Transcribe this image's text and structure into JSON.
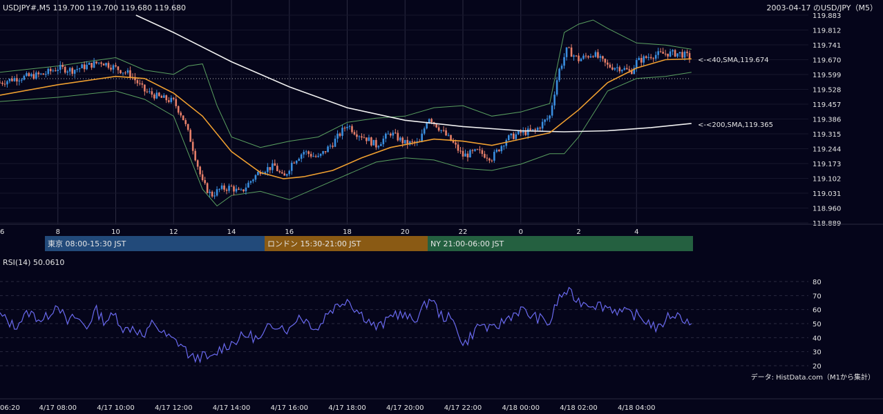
{
  "header": {
    "symbol_info": "USDJPY#,M5 119.700 119.700 119.680 119.680",
    "title": "2003-04-17 のUSD/JPY（M5）"
  },
  "main_axis": {
    "ticks": [
      "119.883",
      "119.812",
      "119.741",
      "119.670",
      "119.599",
      "119.528",
      "119.457",
      "119.386",
      "119.315",
      "119.244",
      "119.173",
      "119.102",
      "119.031",
      "118.960",
      "118.889"
    ],
    "x_ticks": [
      "6",
      "8",
      "10",
      "12",
      "14",
      "16",
      "18",
      "20",
      "22",
      "0",
      "2",
      "4"
    ]
  },
  "sessions": [
    {
      "label": "東京 08:00-15:30 JST",
      "color": "#224a7a"
    },
    {
      "label": "ロンドン 15:30-21:00 JST",
      "color": "#8a5a14"
    },
    {
      "label": "NY 21:00-06:00 JST",
      "color": "#246040"
    }
  ],
  "annotations": {
    "sma40": "<-<40,SMA,119.674",
    "sma200": "<-<200,SMA,119.365"
  },
  "colors": {
    "background": "#05051a",
    "bull": "#3a8fe0",
    "bear": "#e8806a",
    "sma40": "#f0a030",
    "sma200": "#f2f2f2",
    "bands": "#5aa060",
    "rsi": "#6a6af0"
  },
  "rsi": {
    "title": "RSI(14) 50.0610",
    "ticks": [
      "80",
      "70",
      "60",
      "50",
      "40",
      "30",
      "20"
    ]
  },
  "footer": {
    "source": "データ: HistData.com（M1から集計）",
    "time_ticks": [
      "06:20",
      "4/17 08:00",
      "4/17 10:00",
      "4/17 12:00",
      "4/17 14:00",
      "4/17 16:00",
      "4/17 18:00",
      "4/17 20:00",
      "4/17 22:00",
      "4/18 00:00",
      "4/18 02:00",
      "4/18 04:00"
    ]
  },
  "chart_data": [
    {
      "type": "candlestick",
      "title": "2003-04-17 のUSD/JPY（M5）",
      "ylim": [
        118.889,
        119.883
      ],
      "x_hours": [
        "6",
        "8",
        "10",
        "12",
        "14",
        "16",
        "18",
        "20",
        "22",
        "0",
        "2",
        "4"
      ],
      "close_path": [
        [
          6.0,
          119.56
        ],
        [
          6.5,
          119.58
        ],
        [
          7.0,
          119.59
        ],
        [
          7.5,
          119.6
        ],
        [
          8.0,
          119.63
        ],
        [
          8.5,
          119.62
        ],
        [
          9.0,
          119.64
        ],
        [
          9.5,
          119.66
        ],
        [
          10.0,
          119.63
        ],
        [
          10.5,
          119.6
        ],
        [
          11.0,
          119.52
        ],
        [
          11.5,
          119.49
        ],
        [
          12.0,
          119.47
        ],
        [
          12.3,
          119.4
        ],
        [
          12.6,
          119.28
        ],
        [
          13.0,
          119.08
        ],
        [
          13.3,
          119.02
        ],
        [
          13.6,
          119.05
        ],
        [
          14.0,
          119.06
        ],
        [
          14.3,
          119.03
        ],
        [
          14.6,
          119.08
        ],
        [
          15.0,
          119.14
        ],
        [
          15.5,
          119.16
        ],
        [
          15.8,
          119.1
        ],
        [
          16.1,
          119.18
        ],
        [
          16.5,
          119.23
        ],
        [
          17.0,
          119.2
        ],
        [
          17.5,
          119.27
        ],
        [
          18.0,
          119.36
        ],
        [
          18.3,
          119.32
        ],
        [
          18.6,
          119.3
        ],
        [
          19.0,
          119.26
        ],
        [
          19.5,
          119.32
        ],
        [
          20.0,
          119.27
        ],
        [
          20.5,
          119.27
        ],
        [
          20.8,
          119.4
        ],
        [
          21.2,
          119.34
        ],
        [
          21.6,
          119.28
        ],
        [
          22.0,
          119.21
        ],
        [
          22.5,
          119.23
        ],
        [
          23.0,
          119.2
        ],
        [
          23.5,
          119.29
        ],
        [
          24.0,
          119.32
        ],
        [
          24.5,
          119.33
        ],
        [
          25.0,
          119.4
        ],
        [
          25.3,
          119.61
        ],
        [
          25.6,
          119.72
        ],
        [
          26.0,
          119.67
        ],
        [
          26.5,
          119.7
        ],
        [
          27.0,
          119.64
        ],
        [
          27.5,
          119.63
        ],
        [
          27.8,
          119.61
        ],
        [
          28.0,
          119.66
        ],
        [
          28.5,
          119.69
        ],
        [
          29.0,
          119.7
        ],
        [
          29.5,
          119.7
        ],
        [
          29.9,
          119.68
        ]
      ],
      "sma40": [
        [
          6.0,
          119.5
        ],
        [
          8.0,
          119.55
        ],
        [
          10.0,
          119.59
        ],
        [
          11.0,
          119.58
        ],
        [
          12.0,
          119.51
        ],
        [
          13.0,
          119.4
        ],
        [
          14.0,
          119.23
        ],
        [
          15.0,
          119.13
        ],
        [
          15.8,
          119.1
        ],
        [
          16.5,
          119.11
        ],
        [
          17.5,
          119.14
        ],
        [
          18.5,
          119.2
        ],
        [
          19.5,
          119.25
        ],
        [
          21.0,
          119.29
        ],
        [
          22.0,
          119.28
        ],
        [
          23.0,
          119.26
        ],
        [
          24.0,
          119.29
        ],
        [
          25.0,
          119.32
        ],
        [
          26.0,
          119.43
        ],
        [
          27.0,
          119.56
        ],
        [
          28.0,
          119.63
        ],
        [
          29.0,
          119.67
        ],
        [
          29.9,
          119.674
        ]
      ],
      "sma200": [
        [
          10.7,
          119.883
        ],
        [
          12.0,
          119.8
        ],
        [
          14.0,
          119.66
        ],
        [
          16.0,
          119.54
        ],
        [
          18.0,
          119.44
        ],
        [
          20.0,
          119.38
        ],
        [
          22.0,
          119.35
        ],
        [
          24.0,
          119.33
        ],
        [
          25.5,
          119.325
        ],
        [
          27.0,
          119.33
        ],
        [
          28.5,
          119.345
        ],
        [
          29.9,
          119.365
        ]
      ],
      "bb_upper": [
        [
          6.0,
          119.61
        ],
        [
          8.0,
          119.64
        ],
        [
          9.0,
          119.66
        ],
        [
          10.0,
          119.68
        ],
        [
          11.0,
          119.62
        ],
        [
          12.0,
          119.6
        ],
        [
          12.5,
          119.64
        ],
        [
          13.0,
          119.65
        ],
        [
          13.5,
          119.45
        ],
        [
          14.0,
          119.3
        ],
        [
          15.0,
          119.25
        ],
        [
          16.0,
          119.28
        ],
        [
          17.0,
          119.3
        ],
        [
          18.0,
          119.37
        ],
        [
          19.0,
          119.39
        ],
        [
          20.0,
          119.4
        ],
        [
          21.0,
          119.44
        ],
        [
          22.0,
          119.45
        ],
        [
          23.0,
          119.4
        ],
        [
          24.0,
          119.42
        ],
        [
          25.0,
          119.46
        ],
        [
          25.5,
          119.8
        ],
        [
          26.0,
          119.84
        ],
        [
          26.5,
          119.86
        ],
        [
          27.0,
          119.82
        ],
        [
          28.0,
          119.75
        ],
        [
          29.0,
          119.74
        ],
        [
          29.9,
          119.72
        ]
      ],
      "bb_lower": [
        [
          6.0,
          119.47
        ],
        [
          8.0,
          119.49
        ],
        [
          10.0,
          119.52
        ],
        [
          11.0,
          119.48
        ],
        [
          12.0,
          119.4
        ],
        [
          13.0,
          119.05
        ],
        [
          13.5,
          118.97
        ],
        [
          14.0,
          119.02
        ],
        [
          15.0,
          119.04
        ],
        [
          16.0,
          119.0
        ],
        [
          17.0,
          119.06
        ],
        [
          18.0,
          119.12
        ],
        [
          19.0,
          119.18
        ],
        [
          20.0,
          119.2
        ],
        [
          21.0,
          119.19
        ],
        [
          22.0,
          119.15
        ],
        [
          23.0,
          119.14
        ],
        [
          24.0,
          119.17
        ],
        [
          25.0,
          119.22
        ],
        [
          25.5,
          119.22
        ],
        [
          26.0,
          119.3
        ],
        [
          27.0,
          119.52
        ],
        [
          28.0,
          119.58
        ],
        [
          29.0,
          119.59
        ],
        [
          29.9,
          119.61
        ]
      ]
    },
    {
      "type": "line",
      "title": "RSI(14) 50.0610",
      "ylim": [
        20,
        80
      ],
      "points": [
        [
          6.0,
          56
        ],
        [
          6.5,
          48
        ],
        [
          7.0,
          58
        ],
        [
          7.5,
          52
        ],
        [
          8.0,
          65
        ],
        [
          8.3,
          50
        ],
        [
          8.6,
          55
        ],
        [
          9.0,
          47
        ],
        [
          9.3,
          60
        ],
        [
          9.6,
          52
        ],
        [
          10.0,
          56
        ],
        [
          10.3,
          45
        ],
        [
          10.6,
          48
        ],
        [
          11.0,
          40
        ],
        [
          11.3,
          52
        ],
        [
          11.6,
          43
        ],
        [
          12.0,
          38
        ],
        [
          12.3,
          35
        ],
        [
          12.6,
          25
        ],
        [
          13.0,
          27
        ],
        [
          13.3,
          24
        ],
        [
          13.6,
          32
        ],
        [
          14.0,
          36
        ],
        [
          14.3,
          40
        ],
        [
          14.6,
          42
        ],
        [
          15.0,
          38
        ],
        [
          15.3,
          48
        ],
        [
          15.6,
          50
        ],
        [
          16.0,
          45
        ],
        [
          16.3,
          56
        ],
        [
          16.6,
          52
        ],
        [
          17.0,
          46
        ],
        [
          17.3,
          58
        ],
        [
          17.6,
          62
        ],
        [
          18.0,
          68
        ],
        [
          18.3,
          60
        ],
        [
          18.6,
          55
        ],
        [
          19.0,
          47
        ],
        [
          19.3,
          50
        ],
        [
          19.6,
          58
        ],
        [
          20.0,
          55
        ],
        [
          20.3,
          52
        ],
        [
          20.6,
          60
        ],
        [
          20.9,
          69
        ],
        [
          21.2,
          56
        ],
        [
          21.5,
          54
        ],
        [
          21.8,
          48
        ],
        [
          22.0,
          34
        ],
        [
          22.3,
          42
        ],
        [
          22.6,
          50
        ],
        [
          23.0,
          45
        ],
        [
          23.3,
          50
        ],
        [
          23.6,
          55
        ],
        [
          24.0,
          60
        ],
        [
          24.3,
          56
        ],
        [
          24.6,
          54
        ],
        [
          25.0,
          50
        ],
        [
          25.3,
          68
        ],
        [
          25.6,
          73
        ],
        [
          26.0,
          66
        ],
        [
          26.5,
          64
        ],
        [
          27.0,
          62
        ],
        [
          27.5,
          58
        ],
        [
          28.0,
          56
        ],
        [
          28.5,
          50
        ],
        [
          28.8,
          45
        ],
        [
          29.0,
          54
        ],
        [
          29.3,
          57
        ],
        [
          29.6,
          54
        ],
        [
          29.9,
          50
        ]
      ]
    }
  ]
}
